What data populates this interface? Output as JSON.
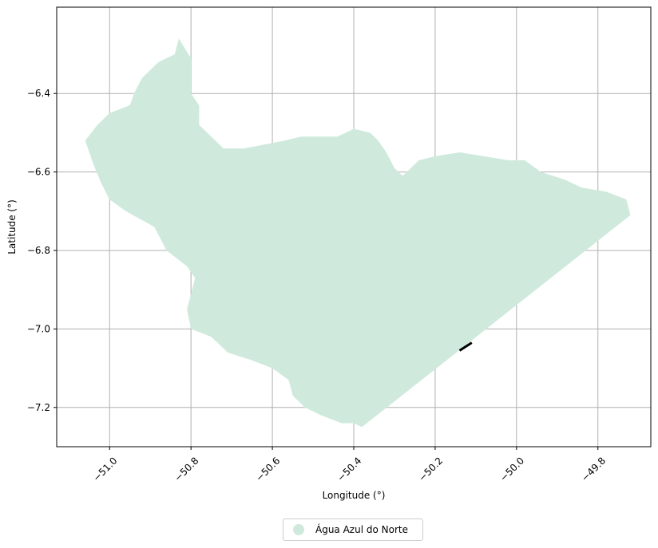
{
  "chart_data": {
    "type": "map",
    "xlabel": "Longitude (°)",
    "ylabel": "Latitude (°)",
    "xlim": [
      -51.13,
      -49.67
    ],
    "ylim": [
      -7.3,
      -6.18
    ],
    "xticks": [
      -51.0,
      -50.8,
      -50.6,
      -50.4,
      -50.2,
      -50.0,
      -49.8
    ],
    "xtick_labels": [
      "−51.0",
      "−50.8",
      "−50.6",
      "−50.4",
      "−50.2",
      "−50.0",
      "−49.8"
    ],
    "yticks": [
      -6.4,
      -6.6,
      -6.8,
      -7.0,
      -7.2
    ],
    "ytick_labels": [
      "−6.4",
      "−6.6",
      "−6.8",
      "−7.0",
      "−7.2"
    ],
    "grid": true,
    "legend_placement": "bottom-center",
    "region": {
      "name": "Água Azul do Norte",
      "color": "#cfeadc",
      "boundary": [
        [
          -50.83,
          -6.26
        ],
        [
          -50.84,
          -6.3
        ],
        [
          -50.88,
          -6.32
        ],
        [
          -50.92,
          -6.36
        ],
        [
          -50.94,
          -6.4
        ],
        [
          -50.95,
          -6.43
        ],
        [
          -51.0,
          -6.45
        ],
        [
          -51.03,
          -6.48
        ],
        [
          -51.06,
          -6.52
        ],
        [
          -51.04,
          -6.58
        ],
        [
          -51.02,
          -6.63
        ],
        [
          -51.0,
          -6.67
        ],
        [
          -50.96,
          -6.7
        ],
        [
          -50.89,
          -6.74
        ],
        [
          -50.86,
          -6.8
        ],
        [
          -50.81,
          -6.84
        ],
        [
          -50.79,
          -6.87
        ],
        [
          -50.81,
          -6.95
        ],
        [
          -50.8,
          -7.0
        ],
        [
          -50.75,
          -7.02
        ],
        [
          -50.71,
          -7.06
        ],
        [
          -50.65,
          -7.08
        ],
        [
          -50.6,
          -7.1
        ],
        [
          -50.56,
          -7.13
        ],
        [
          -50.55,
          -7.17
        ],
        [
          -50.52,
          -7.2
        ],
        [
          -50.48,
          -7.22
        ],
        [
          -50.43,
          -7.24
        ],
        [
          -50.4,
          -7.24
        ],
        [
          -50.38,
          -7.25
        ],
        [
          -49.72,
          -6.71
        ],
        [
          -49.73,
          -6.67
        ],
        [
          -49.78,
          -6.65
        ],
        [
          -49.84,
          -6.64
        ],
        [
          -49.88,
          -6.62
        ],
        [
          -49.94,
          -6.6
        ],
        [
          -49.98,
          -6.57
        ],
        [
          -50.02,
          -6.57
        ],
        [
          -50.08,
          -6.56
        ],
        [
          -50.14,
          -6.55
        ],
        [
          -50.2,
          -6.56
        ],
        [
          -50.24,
          -6.57
        ],
        [
          -50.28,
          -6.61
        ],
        [
          -50.3,
          -6.59
        ],
        [
          -50.32,
          -6.55
        ],
        [
          -50.34,
          -6.52
        ],
        [
          -50.36,
          -6.5
        ],
        [
          -50.4,
          -6.49
        ],
        [
          -50.44,
          -6.51
        ],
        [
          -50.48,
          -6.51
        ],
        [
          -50.53,
          -6.51
        ],
        [
          -50.57,
          -6.52
        ],
        [
          -50.62,
          -6.53
        ],
        [
          -50.67,
          -6.54
        ],
        [
          -50.72,
          -6.54
        ],
        [
          -50.75,
          -6.51
        ],
        [
          -50.78,
          -6.48
        ],
        [
          -50.78,
          -6.43
        ],
        [
          -50.8,
          -6.4
        ],
        [
          -50.8,
          -6.35
        ],
        [
          -50.8,
          -6.31
        ]
      ]
    },
    "feature_line": {
      "color": "#000000",
      "points": [
        [
          -50.14,
          -7.055
        ],
        [
          -50.11,
          -7.035
        ]
      ]
    }
  }
}
